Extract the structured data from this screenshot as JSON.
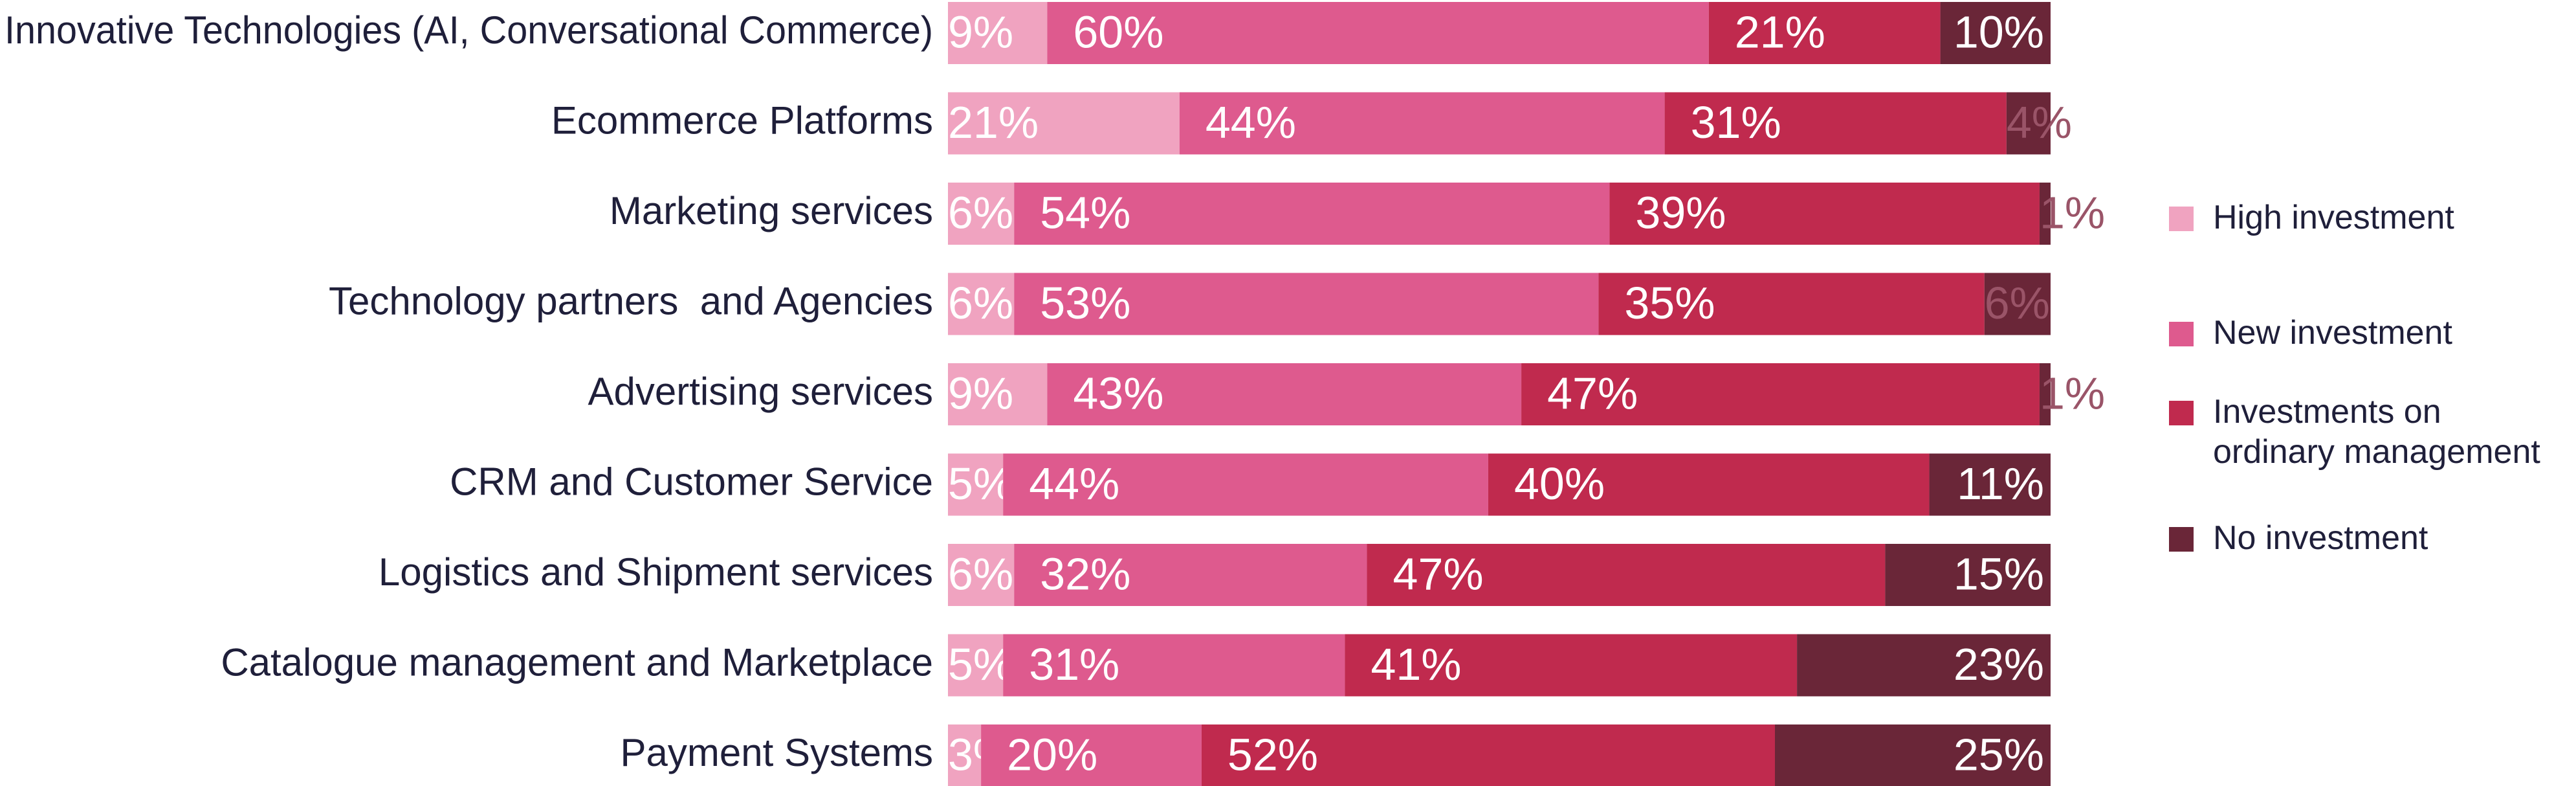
{
  "chart_data": {
    "type": "stacked-bar",
    "orientation": "horizontal",
    "categories": [
      "Innovative Technologies (AI, Conversational Commerce)",
      "Ecommerce Platforms",
      "Marketing services",
      "Technology partners  and Agencies",
      "Advertising services",
      "CRM and Customer Service",
      "Logistics and Shipment services",
      "Catalogue management and Marketplace",
      "Payment Systems"
    ],
    "xlim": [
      0,
      100
    ],
    "series": [
      {
        "name": "High investment",
        "color": "#f0a3c0",
        "values": [
          9,
          21,
          6,
          6,
          9,
          5,
          6,
          5,
          3
        ],
        "value_labels": [
          "9%",
          "21%",
          "6%",
          "6%",
          "9%",
          "5%",
          "6%",
          "5%",
          "3%"
        ]
      },
      {
        "name": "New investment",
        "color": "#de5a8e",
        "values": [
          60,
          44,
          54,
          53,
          43,
          44,
          32,
          31,
          20
        ],
        "value_labels": [
          "60%",
          "44%",
          "54%",
          "53%",
          "43%",
          "44%",
          "32%",
          "31%",
          "20%"
        ]
      },
      {
        "name": "Investments on ordinary management",
        "color": "#c02a4e",
        "values": [
          21,
          31,
          39,
          35,
          47,
          40,
          47,
          41,
          52
        ],
        "value_labels": [
          "21%",
          "31%",
          "39%",
          "35%",
          "47%",
          "40%",
          "47%",
          "41%",
          "52%"
        ]
      },
      {
        "name": "No investment",
        "color": "#6a2638",
        "values": [
          10,
          4,
          1,
          6,
          1,
          11,
          15,
          23,
          25
        ],
        "value_labels": [
          "10%",
          "4%",
          "1%",
          "6%",
          "1%",
          "11%",
          "15%",
          "23%",
          "25%"
        ]
      }
    ],
    "legend": "right"
  }
}
